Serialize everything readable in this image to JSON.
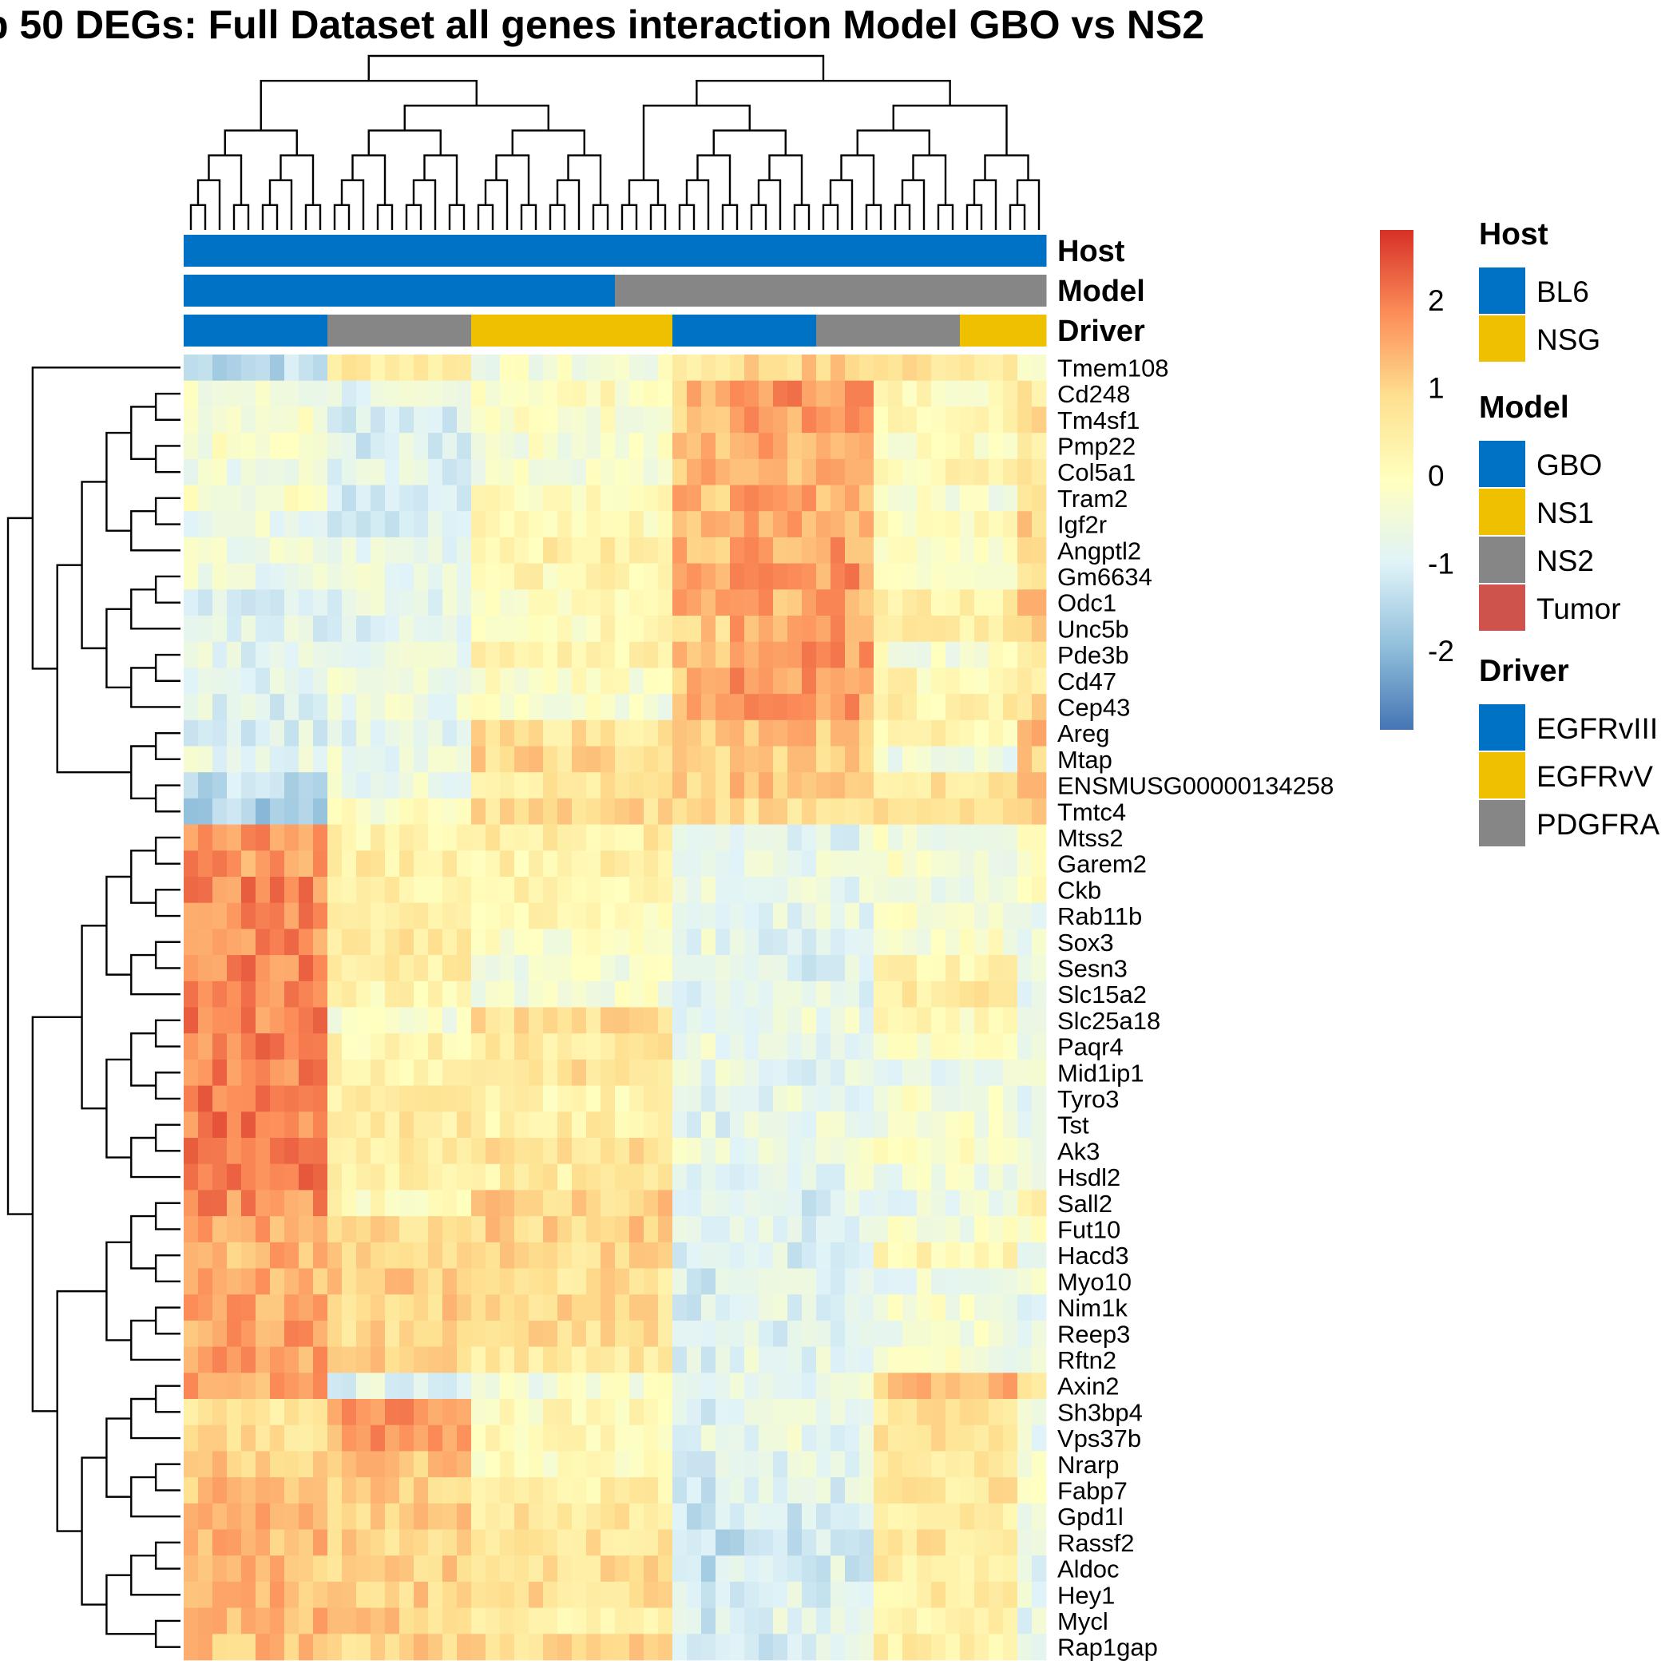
{
  "chart_data": {
    "type": "heatmap",
    "title": "p 50 DEGs: Full Dataset all genes interaction Model GBO vs NS2",
    "color_scale": {
      "min": -2.9,
      "max": 2.8,
      "ticks": [
        2,
        1,
        0,
        -1,
        -2
      ],
      "tick_labels": [
        "2",
        "1",
        "0",
        "-1",
        "-2"
      ],
      "colors": [
        "#4575b4",
        "#91bfdb",
        "#e0f3f8",
        "#ffffbf",
        "#fee090",
        "#fc8d59",
        "#d73027"
      ]
    },
    "annotation_tracks": [
      {
        "name": "Host",
        "values": [
          "BL6",
          "BL6",
          "BL6",
          "BL6",
          "BL6",
          "BL6",
          "BL6",
          "BL6",
          "BL6",
          "BL6",
          "BL6",
          "BL6",
          "BL6",
          "BL6",
          "BL6",
          "BL6",
          "BL6",
          "BL6",
          "BL6",
          "BL6",
          "BL6",
          "BL6",
          "BL6",
          "BL6",
          "BL6",
          "BL6",
          "BL6",
          "BL6",
          "BL6",
          "BL6",
          "BL6",
          "BL6",
          "BL6",
          "BL6",
          "BL6",
          "BL6",
          "BL6",
          "BL6",
          "BL6",
          "BL6",
          "BL6",
          "BL6",
          "BL6",
          "BL6",
          "BL6",
          "BL6",
          "BL6",
          "BL6",
          "BL6",
          "BL6",
          "BL6",
          "BL6",
          "BL6",
          "BL6",
          "BL6",
          "BL6",
          "BL6",
          "BL6",
          "BL6",
          "BL6"
        ]
      },
      {
        "name": "Model",
        "values": [
          "GBO",
          "GBO",
          "GBO",
          "GBO",
          "GBO",
          "GBO",
          "GBO",
          "GBO",
          "GBO",
          "GBO",
          "GBO",
          "GBO",
          "GBO",
          "GBO",
          "GBO",
          "GBO",
          "GBO",
          "GBO",
          "GBO",
          "GBO",
          "GBO",
          "GBO",
          "GBO",
          "GBO",
          "GBO",
          "GBO",
          "GBO",
          "GBO",
          "GBO",
          "GBO",
          "NS2",
          "NS2",
          "NS2",
          "NS2",
          "NS2",
          "NS2",
          "NS2",
          "NS2",
          "NS2",
          "NS2",
          "NS2",
          "NS2",
          "NS2",
          "NS2",
          "NS2",
          "NS2",
          "NS2",
          "NS2",
          "NS2",
          "NS2",
          "NS2",
          "NS2",
          "NS2",
          "NS2",
          "NS2",
          "NS2",
          "NS2",
          "NS2",
          "NS2",
          "NS2"
        ]
      },
      {
        "name": "Driver",
        "values": [
          "EGFRvIII",
          "EGFRvIII",
          "EGFRvIII",
          "EGFRvIII",
          "EGFRvIII",
          "EGFRvIII",
          "EGFRvIII",
          "EGFRvIII",
          "EGFRvIII",
          "EGFRvIII",
          "PDGFRA",
          "PDGFRA",
          "PDGFRA",
          "PDGFRA",
          "PDGFRA",
          "PDGFRA",
          "PDGFRA",
          "PDGFRA",
          "PDGFRA",
          "PDGFRA",
          "EGFRvV",
          "EGFRvV",
          "EGFRvV",
          "EGFRvV",
          "EGFRvV",
          "EGFRvV",
          "EGFRvV",
          "EGFRvV",
          "EGFRvV",
          "EGFRvV",
          "EGFRvV",
          "EGFRvV",
          "EGFRvV",
          "EGFRvV",
          "EGFRvIII",
          "EGFRvIII",
          "EGFRvIII",
          "EGFRvIII",
          "EGFRvIII",
          "EGFRvIII",
          "EGFRvIII",
          "EGFRvIII",
          "EGFRvIII",
          "EGFRvIII",
          "PDGFRA",
          "PDGFRA",
          "PDGFRA",
          "PDGFRA",
          "PDGFRA",
          "PDGFRA",
          "PDGFRA",
          "PDGFRA",
          "PDGFRA",
          "PDGFRA",
          "EGFRvV",
          "EGFRvV",
          "EGFRvV",
          "EGFRvV",
          "EGFRvV",
          "EGFRvV"
        ]
      }
    ],
    "legend": {
      "placement": "right",
      "groups": [
        {
          "title": "Host",
          "items": [
            {
              "label": "BL6",
              "color": "#0072C6"
            },
            {
              "label": "NSG",
              "color": "#EFC000"
            }
          ]
        },
        {
          "title": "Model",
          "items": [
            {
              "label": "GBO",
              "color": "#0072C6"
            },
            {
              "label": "NS1",
              "color": "#EFC000"
            },
            {
              "label": "NS2",
              "color": "#868686"
            },
            {
              "label": "Tumor",
              "color": "#CD534C"
            }
          ]
        },
        {
          "title": "Driver",
          "items": [
            {
              "label": "EGFRvIII",
              "color": "#0072C6"
            },
            {
              "label": "EGFRvV",
              "color": "#EFC000"
            },
            {
              "label": "PDGFRA",
              "color": "#868686"
            }
          ]
        }
      ]
    },
    "genes": [
      "Tmem108",
      "Cd248",
      "Tm4sf1",
      "Pmp22",
      "Col5a1",
      "Tram2",
      "Igf2r",
      "Angptl2",
      "Gm6634",
      "Odc1",
      "Unc5b",
      "Pde3b",
      "Cd47",
      "Cep43",
      "Areg",
      "Mtap",
      "ENSMUSG00000134258",
      "Tmtc4",
      "Mtss2",
      "Garem2",
      "Ckb",
      "Rab11b",
      "Sox3",
      "Sesn3",
      "Slc15a2",
      "Slc25a18",
      "Paqr4",
      "Mid1ip1",
      "Tyro3",
      "Tst",
      "Ak3",
      "Hsdl2",
      "Sall2",
      "Fut10",
      "Hacd3",
      "Myo10",
      "Nim1k",
      "Reep3",
      "Rftn2",
      "Axin2",
      "Sh3bp4",
      "Vps37b",
      "Nrarp",
      "Fabp7",
      "Gpd1l",
      "Rassf2",
      "Aldoc",
      "Hey1",
      "Mycl",
      "Rap1gap"
    ],
    "group_profiles": {
      "column_groups": [
        "GBO-EGFRvIII",
        "GBO-PDGFRA",
        "GBO-EGFRvV",
        "NS2-EGFRvV-a",
        "NS2-EGFRvIII",
        "NS2-PDGFRA",
        "NS2-EGFRvV-b"
      ],
      "column_group_sizes": [
        10,
        10,
        14,
        4,
        10,
        10,
        6
      ],
      "rows": [
        [
          -1.4,
          0.6,
          -0.4,
          0.6,
          1.0,
          0.8,
          -0.4
        ],
        [
          -0.5,
          -0.8,
          0.0,
          1.2,
          1.8,
          0.1,
          0.6
        ],
        [
          -0.2,
          -0.9,
          -0.2,
          1.2,
          1.6,
          0.0,
          0.8
        ],
        [
          -0.3,
          -1.0,
          -0.3,
          1.3,
          1.5,
          0.0,
          0.7
        ],
        [
          -0.5,
          -0.9,
          -0.4,
          1.3,
          1.4,
          0.2,
          0.9
        ],
        [
          -0.3,
          -1.0,
          0.2,
          1.3,
          1.5,
          -0.3,
          1.0
        ],
        [
          -0.6,
          -1.0,
          0.1,
          1.3,
          1.6,
          0.1,
          1.1
        ],
        [
          -0.6,
          -0.7,
          0.4,
          1.4,
          1.6,
          0.0,
          0.8
        ],
        [
          -0.6,
          -0.7,
          0.2,
          1.5,
          1.7,
          0.0,
          0.8
        ],
        [
          -0.9,
          -0.8,
          0.0,
          1.4,
          1.5,
          0.4,
          1.2
        ],
        [
          -0.8,
          -0.9,
          0.1,
          1.0,
          1.6,
          0.5,
          0.8
        ],
        [
          -0.8,
          -0.6,
          0.3,
          1.2,
          1.7,
          -0.3,
          0.8
        ],
        [
          -0.8,
          -0.4,
          -0.2,
          1.3,
          1.7,
          0.2,
          0.6
        ],
        [
          -0.9,
          -0.6,
          -0.3,
          1.4,
          1.6,
          0.4,
          0.8
        ],
        [
          -0.9,
          -0.9,
          0.7,
          1.0,
          1.2,
          0.3,
          1.3
        ],
        [
          -0.7,
          -0.6,
          0.9,
          0.9,
          1.1,
          -0.6,
          1.0
        ],
        [
          -1.3,
          -0.6,
          0.6,
          0.9,
          1.1,
          0.7,
          1.4
        ],
        [
          -1.6,
          -0.2,
          0.9,
          0.9,
          0.9,
          0.6,
          0.8
        ],
        [
          1.8,
          0.3,
          0.5,
          -0.6,
          -0.8,
          -0.4,
          -0.3
        ],
        [
          1.7,
          0.5,
          0.4,
          -0.7,
          -0.6,
          -0.3,
          -0.2
        ],
        [
          1.9,
          0.4,
          0.3,
          -0.6,
          -0.8,
          -0.5,
          -0.1
        ],
        [
          1.8,
          0.6,
          0.1,
          -0.8,
          -0.8,
          -0.3,
          -0.8
        ],
        [
          1.8,
          0.7,
          -0.2,
          -0.7,
          -0.9,
          -0.2,
          -0.5
        ],
        [
          1.9,
          0.4,
          -0.4,
          -0.8,
          -0.9,
          0.3,
          -0.3
        ],
        [
          1.9,
          0.2,
          -0.3,
          -0.9,
          -0.8,
          0.6,
          -0.6
        ],
        [
          1.9,
          -0.4,
          0.8,
          -0.7,
          -0.6,
          0.0,
          -0.5
        ],
        [
          1.9,
          0.3,
          0.6,
          -0.6,
          -0.8,
          -0.3,
          -0.5
        ],
        [
          2.0,
          0.4,
          0.7,
          -0.7,
          -0.8,
          -0.6,
          0.0
        ],
        [
          2.0,
          0.5,
          0.3,
          -0.7,
          -0.7,
          -0.3,
          -0.8
        ],
        [
          2.0,
          0.6,
          0.4,
          -0.8,
          -0.6,
          -0.3,
          -0.5
        ],
        [
          1.9,
          0.6,
          0.8,
          -0.6,
          -0.6,
          -0.2,
          -0.7
        ],
        [
          2.0,
          0.5,
          0.5,
          -0.8,
          -0.7,
          -0.5,
          -0.7
        ],
        [
          1.8,
          0.1,
          1.0,
          -0.9,
          -1.0,
          -0.6,
          0.3
        ],
        [
          1.5,
          0.8,
          1.0,
          -0.9,
          -1.0,
          -0.4,
          0.0
        ],
        [
          1.4,
          1.0,
          0.9,
          -1.0,
          -1.0,
          0.2,
          -0.5
        ],
        [
          1.4,
          1.0,
          0.8,
          -1.1,
          -0.8,
          -0.6,
          -0.6
        ],
        [
          1.5,
          1.0,
          0.9,
          -1.1,
          -0.9,
          -0.4,
          -0.8
        ],
        [
          1.6,
          0.9,
          0.8,
          -1.0,
          -0.9,
          -0.4,
          -0.5
        ],
        [
          1.6,
          1.0,
          0.6,
          -1.0,
          -0.8,
          -0.4,
          -0.7
        ],
        [
          1.6,
          -0.8,
          -0.4,
          -0.7,
          -0.6,
          1.3,
          0.4
        ],
        [
          0.7,
          1.9,
          0.1,
          -0.9,
          -0.8,
          0.7,
          -0.5
        ],
        [
          0.8,
          1.6,
          0.2,
          -0.8,
          -0.7,
          0.8,
          -0.8
        ],
        [
          1.2,
          1.2,
          0.0,
          -1.0,
          -0.8,
          0.5,
          -0.3
        ],
        [
          1.3,
          1.0,
          0.4,
          -1.2,
          -0.9,
          0.6,
          -0.5
        ],
        [
          1.3,
          1.1,
          0.7,
          -1.2,
          -1.1,
          0.4,
          -0.4
        ],
        [
          1.3,
          1.0,
          0.7,
          -1.3,
          -1.2,
          0.6,
          -0.5
        ],
        [
          1.3,
          1.1,
          0.8,
          -1.3,
          -1.0,
          0.5,
          -0.9
        ],
        [
          1.3,
          1.0,
          0.8,
          -1.2,
          -0.9,
          0.5,
          -0.8
        ],
        [
          1.3,
          1.0,
          0.3,
          -1.1,
          -0.8,
          0.4,
          -0.7
        ],
        [
          1.3,
          1.0,
          0.9,
          -1.2,
          -1.0,
          0.4,
          -0.6
        ]
      ]
    }
  }
}
